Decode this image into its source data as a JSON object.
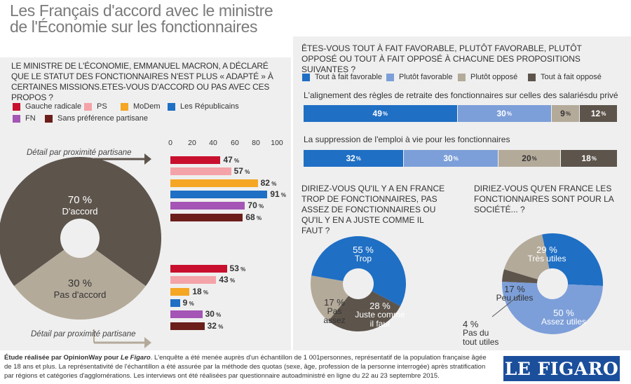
{
  "title": "Les Français d'accord avec le ministre de l'Économie sur les fonctionnaires",
  "question_left": "LE MINISTRE DE L'ÉCONOMIE, EMMANUEL MACRON, A DÉCLARÉ QUE LE STATUT DES FONCTIONNAIRES N'EST PLUS « ADAPTÉ » À CERTAINES MISSIONS.ETES-VOUS D'ACCORD OU PAS AVEC CES PROPOS ?",
  "party_legend": [
    {
      "label": "Gauche radicale",
      "color": "#c8102e"
    },
    {
      "label": "PS",
      "color": "#f4a3a8"
    },
    {
      "label": "MoDem",
      "color": "#f5a623"
    },
    {
      "label": "Les Républicains",
      "color": "#1f6fc4"
    },
    {
      "label": "FN",
      "color": "#a455b5"
    },
    {
      "label": "Sans préférence partisane",
      "color": "#6b1e1a"
    }
  ],
  "detail_label": "Détail par proximité partisane",
  "axis_ticks": [
    "0",
    "20",
    "40",
    "60",
    "80",
    "100"
  ],
  "chart_data": [
    {
      "type": "pie",
      "slices": [
        {
          "label": "D'accord",
          "value": 70,
          "display": "70 %",
          "color": "#5d544c"
        },
        {
          "label": "Pas d'accord",
          "value": 30,
          "display": "30 %",
          "color": "#b4aa9a"
        }
      ]
    },
    {
      "type": "bar",
      "title": "Détail par proximité partisane",
      "categories": [
        "Gauche radicale",
        "PS",
        "MoDem",
        "Les Républicains",
        "FN",
        "Sans préférence partisane"
      ],
      "xlim": [
        0,
        100
      ],
      "groups": [
        {
          "name": "D'accord",
          "values": [
            47,
            57,
            82,
            91,
            70,
            68
          ]
        },
        {
          "name": "Pas d'accord",
          "values": [
            53,
            43,
            18,
            9,
            30,
            32
          ]
        }
      ]
    },
    {
      "type": "bar",
      "stacked": true,
      "title": "ÊTES-VOUS TOUT À FAIT FAVORABLE, PLUTÔT FAVORABLE, PLUTÔT OPPOSÉ OU TOUT À FAIT OPPOSÉ À CHACUNE DES PROPOSITIONS SUIVANTES ?",
      "legend": [
        {
          "label": "Tout à fait favorable",
          "color": "#1f6fc4"
        },
        {
          "label": "Plutôt favorable",
          "color": "#7d9fd9"
        },
        {
          "label": "Plutôt opposé",
          "color": "#b4aa9a"
        },
        {
          "label": "Tout à fait opposé",
          "color": "#5d544c"
        }
      ],
      "rows": [
        {
          "label": "L'alignement des règles de retraite des fonctionnaires sur celles des salariésdu privé",
          "values": [
            49,
            30,
            9,
            12
          ]
        },
        {
          "label": "La suppression de l'emploi à vie pour les fonctionnaires",
          "values": [
            32,
            30,
            20,
            18
          ]
        }
      ]
    },
    {
      "type": "pie",
      "title": "DIRIEZ-VOUS QU'IL Y A EN FRANCE TROP DE FONCTIONNAIRES, PAS ASSEZ DE FONCTIONNAIRES OU QU'IL Y EN A JUSTE COMME IL FAUT ?",
      "slices": [
        {
          "label": "Trop",
          "value": 55,
          "display": "55 %",
          "color": "#1f6fc4"
        },
        {
          "label": "Juste comme il faut",
          "value": 28,
          "display": "28 %",
          "color": "#5d544c"
        },
        {
          "label": "Pas assez",
          "value": 17,
          "display": "17 %",
          "color": "#b4aa9a"
        }
      ]
    },
    {
      "type": "pie",
      "title": "DIRIEZ-VOUS QU'EN FRANCE LES FONCTIONNAIRES SONT POUR LA SOCIÉTÉ... ?",
      "slices": [
        {
          "label": "Très utiles",
          "value": 29,
          "display": "29 %",
          "color": "#1f6fc4"
        },
        {
          "label": "Assez utiles",
          "value": 50,
          "display": "50 %",
          "color": "#7d9fd9"
        },
        {
          "label": "Pas du tout utiles",
          "value": 4,
          "display": "4 %",
          "color": "#5d544c"
        },
        {
          "label": "Peu utiles",
          "value": 17,
          "display": "17 %",
          "color": "#b4aa9a"
        }
      ]
    }
  ],
  "footer": {
    "source": "Étude réalisée par OpinionWay pour",
    "publication": "Le Figaro",
    "text": ". L'enquête a été menée auprès d'un échantillon de 1 001personnes, représentatif de la population française âgée de 18 ans et plus. La représentativité de l'échantillon a été assurée par la méthode des quotas (sexe, âge, profession de la personne interrogée) après stratification par régions et catégories d'agglomérations. Les interviews ont été réalisées par questionnaire autoadministré en ligne du 22 au 23 septembre 2015."
  },
  "logo": "LE FIGARO"
}
